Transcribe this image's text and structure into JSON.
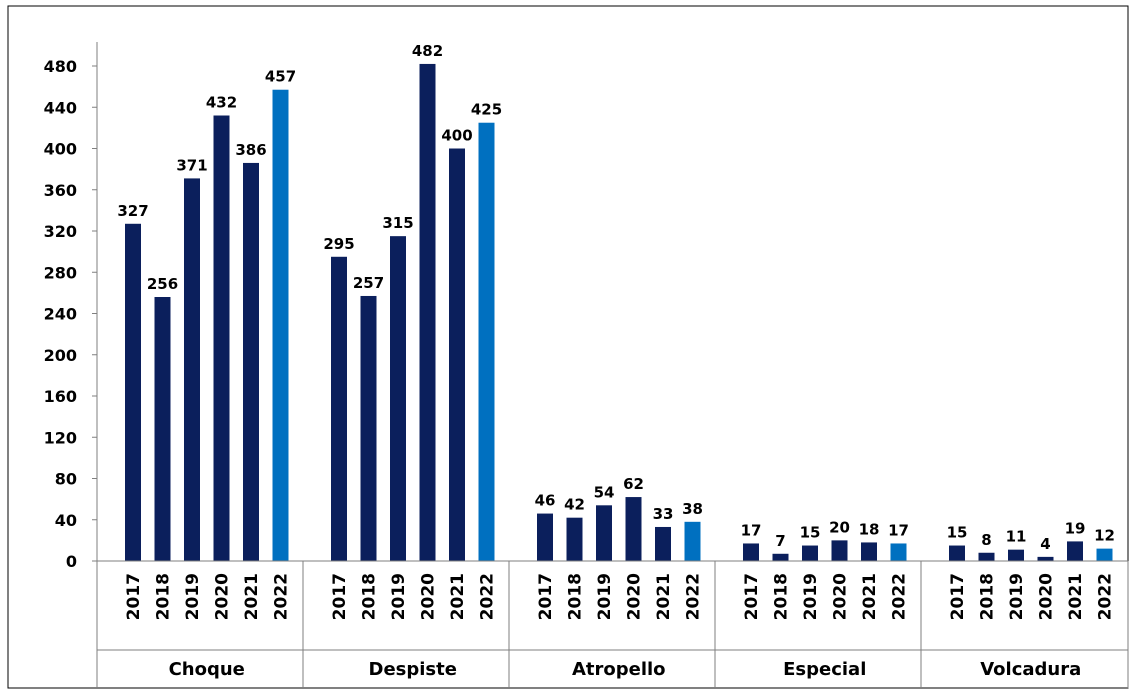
{
  "chart_data": {
    "type": "bar",
    "title": "",
    "xlabel": "",
    "ylabel": "",
    "ylim": [
      0,
      500
    ],
    "yticks": [
      0,
      40,
      80,
      120,
      160,
      200,
      240,
      280,
      320,
      360,
      400,
      440,
      480
    ],
    "grid": false,
    "legend": "none",
    "years": [
      "2017",
      "2018",
      "2019",
      "2020",
      "2021",
      "2022"
    ],
    "groups": [
      {
        "category": "Choque",
        "values": [
          327,
          256,
          371,
          432,
          386,
          457
        ]
      },
      {
        "category": "Despiste",
        "values": [
          295,
          257,
          315,
          482,
          400,
          425
        ]
      },
      {
        "category": "Atropello",
        "values": [
          46,
          42,
          54,
          62,
          33,
          38
        ]
      },
      {
        "category": "Especial",
        "values": [
          17,
          7,
          15,
          20,
          18,
          17
        ]
      },
      {
        "category": "Volcadura",
        "values": [
          15,
          8,
          11,
          4,
          19,
          12
        ]
      }
    ],
    "colors": {
      "default": "#0b1f5c",
      "highlight": "#0070c0",
      "axis": "#7f7f7f"
    }
  }
}
